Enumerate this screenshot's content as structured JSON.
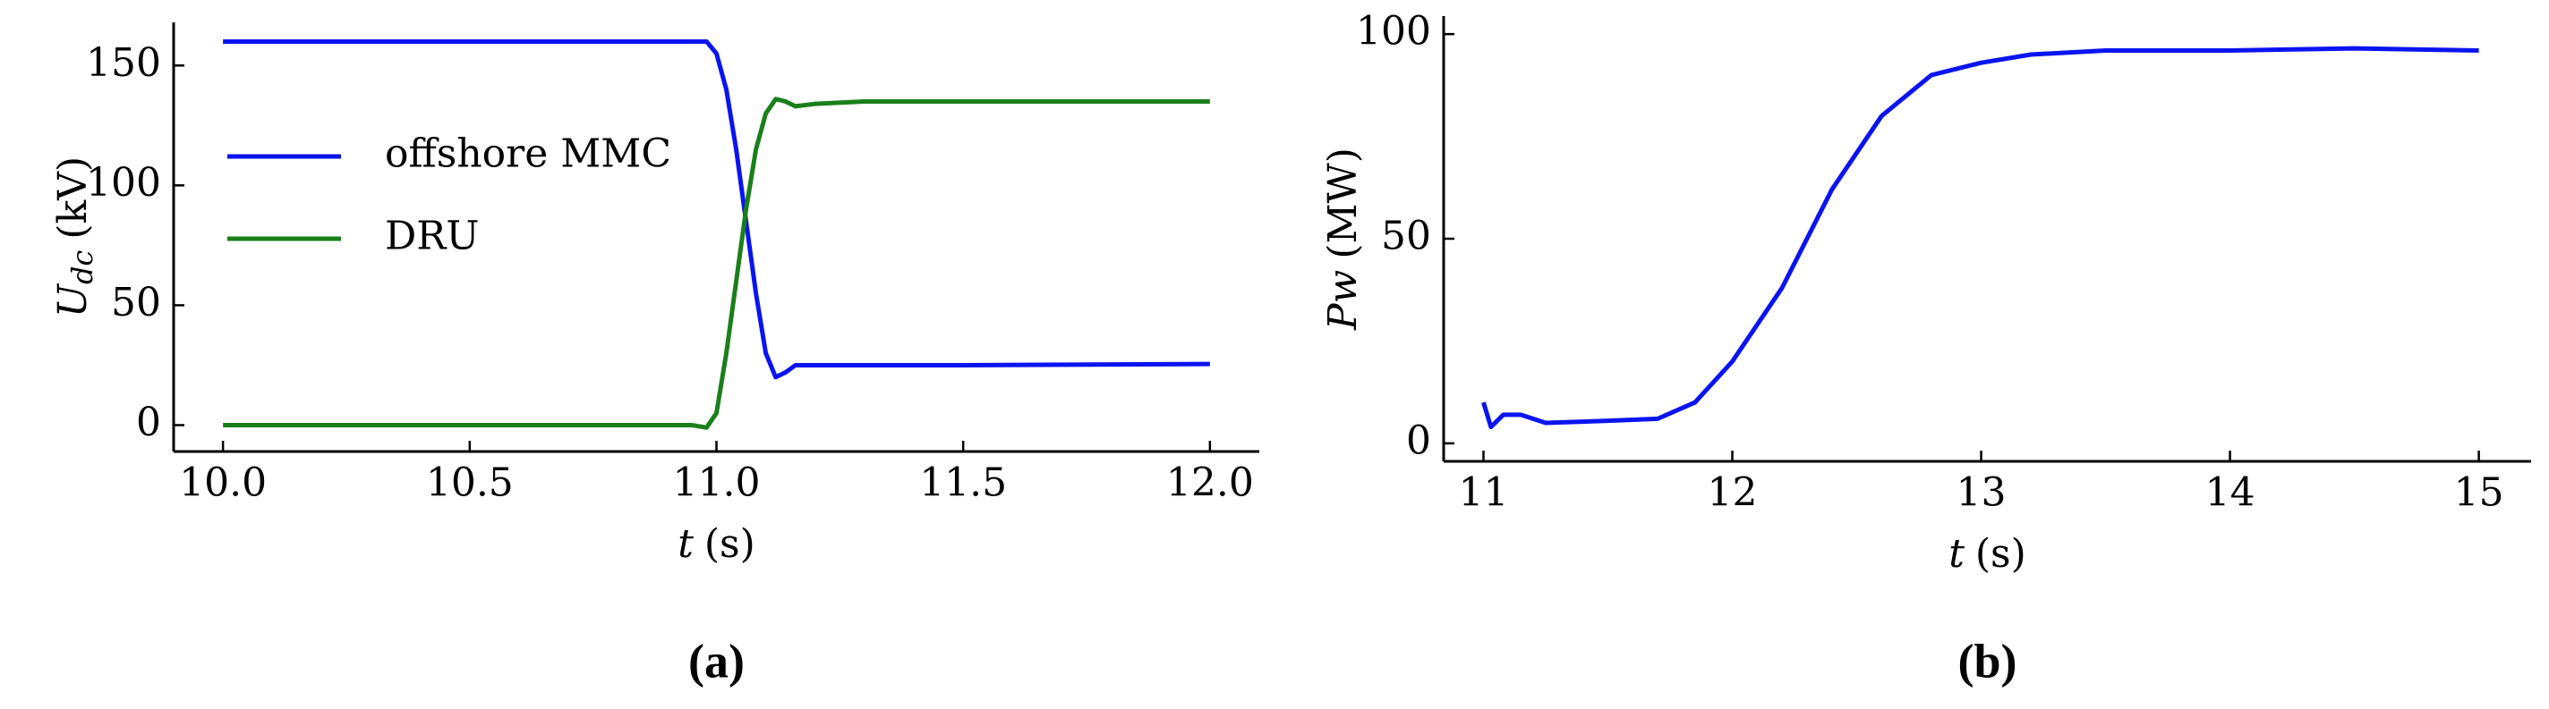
{
  "chart_data": [
    {
      "type": "line",
      "caption": "(a)",
      "xlabel": {
        "symbol": "t",
        "unit": "(s)"
      },
      "ylabel": {
        "symbol": "U",
        "subscript": "dc",
        "unit": "(kV)"
      },
      "x": [
        10.0,
        10.5,
        10.95,
        10.98,
        11.0,
        11.02,
        11.04,
        11.06,
        11.08,
        11.1,
        11.12,
        11.14,
        11.16,
        11.2,
        11.3,
        11.5,
        12.0
      ],
      "series": [
        {
          "name": "offshore MMC",
          "color": "#0a14f0",
          "values": [
            160,
            160,
            160,
            160,
            155,
            140,
            115,
            85,
            55,
            30,
            20,
            22,
            25,
            25,
            25,
            25,
            25.5
          ]
        },
        {
          "name": "DRU",
          "color": "#1a7f1a",
          "values": [
            0,
            0,
            0,
            -1,
            5,
            30,
            60,
            90,
            115,
            130,
            136,
            135,
            133,
            134,
            135,
            135,
            135
          ]
        }
      ],
      "xlim": [
        9.9,
        12.1
      ],
      "ylim": [
        -11,
        168
      ],
      "xticks": [
        {
          "value": 10,
          "label": "10.0"
        },
        10.5,
        {
          "value": 11,
          "label": "11.0"
        },
        11.5,
        {
          "value": 12,
          "label": "12.0"
        }
      ],
      "yticks": [
        0,
        50,
        100,
        150
      ],
      "legend": "center left"
    },
    {
      "type": "line",
      "caption": "(b)",
      "xlabel": {
        "symbol": "t",
        "unit": "(s)"
      },
      "ylabel": {
        "symbol": "Pw",
        "unit": "(MW)"
      },
      "x": [
        11.0,
        11.03,
        11.08,
        11.15,
        11.25,
        11.5,
        11.7,
        11.85,
        12.0,
        12.2,
        12.4,
        12.6,
        12.8,
        13.0,
        13.2,
        13.5,
        14.0,
        14.5,
        15.0
      ],
      "series": [
        {
          "color": "#0a14f0",
          "values": [
            10,
            4,
            7,
            7,
            5,
            5.5,
            6,
            10,
            20,
            38,
            62,
            80,
            90,
            93,
            95,
            96,
            96,
            96.5,
            96
          ]
        }
      ],
      "xlim": [
        10.84,
        15.21
      ],
      "ylim": [
        -4.4,
        104.4
      ],
      "xticks": [
        11,
        12,
        13,
        14,
        15
      ],
      "yticks": [
        0,
        50,
        100
      ]
    }
  ]
}
